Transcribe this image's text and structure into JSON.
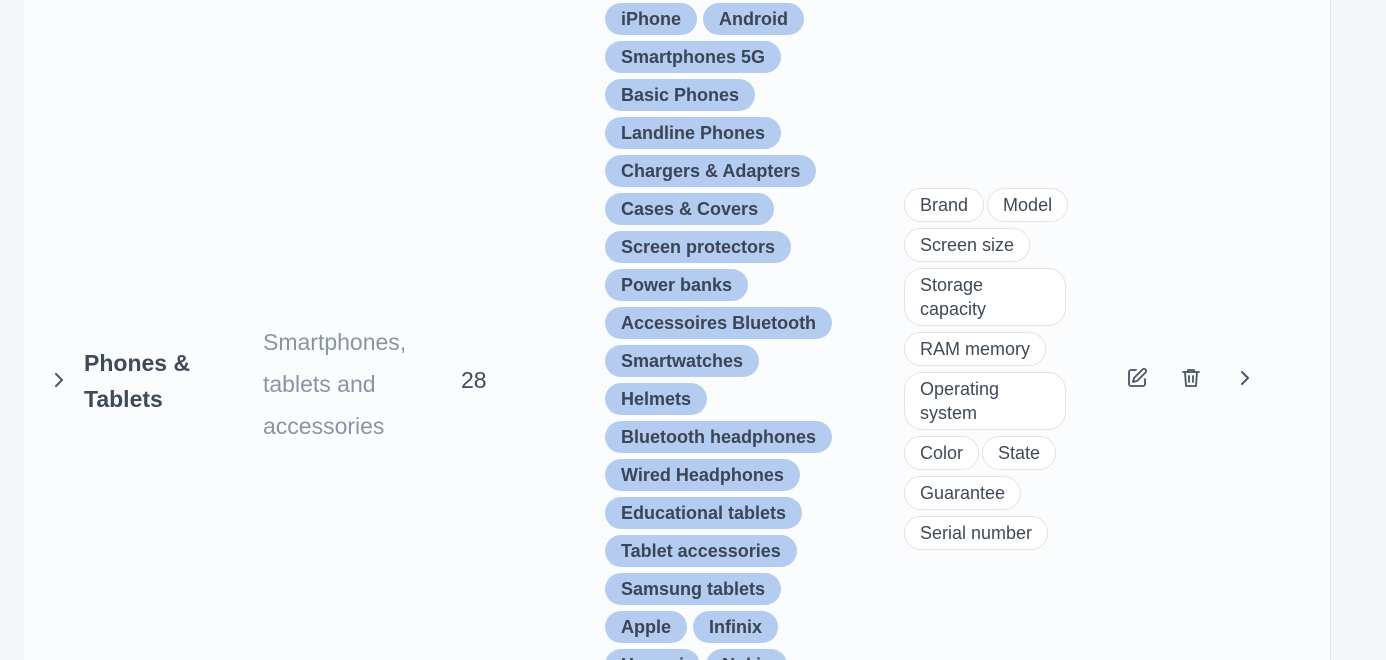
{
  "category": {
    "name": "Phones & Tablets",
    "description": "Smartphones, tablets and accessories",
    "count": "28"
  },
  "subcategories": [
    "iPhone",
    "Android",
    "Smartphones 5G",
    "Basic Phones",
    "Landline Phones",
    "Chargers & Adapters",
    "Cases & Covers",
    "Screen protectors",
    "Power banks",
    "Accessoires Bluetooth",
    "Smartwatches",
    "Helmets",
    "Bluetooth headphones",
    "Wired Headphones",
    "Educational tablets",
    "Tablet accessories",
    "Samsung tablets",
    "Apple",
    "Infinix",
    "Huawei",
    "Nokia"
  ],
  "attributes": [
    "Brand",
    "Model",
    "Screen size",
    "Storage capacity",
    "RAM memory",
    "Operating system",
    "Color",
    "State",
    "Guarantee",
    "Serial number"
  ],
  "icons": {
    "expand": "chevron-right-icon",
    "edit": "edit-icon",
    "delete": "trash-icon",
    "open": "chevron-right-icon"
  }
}
